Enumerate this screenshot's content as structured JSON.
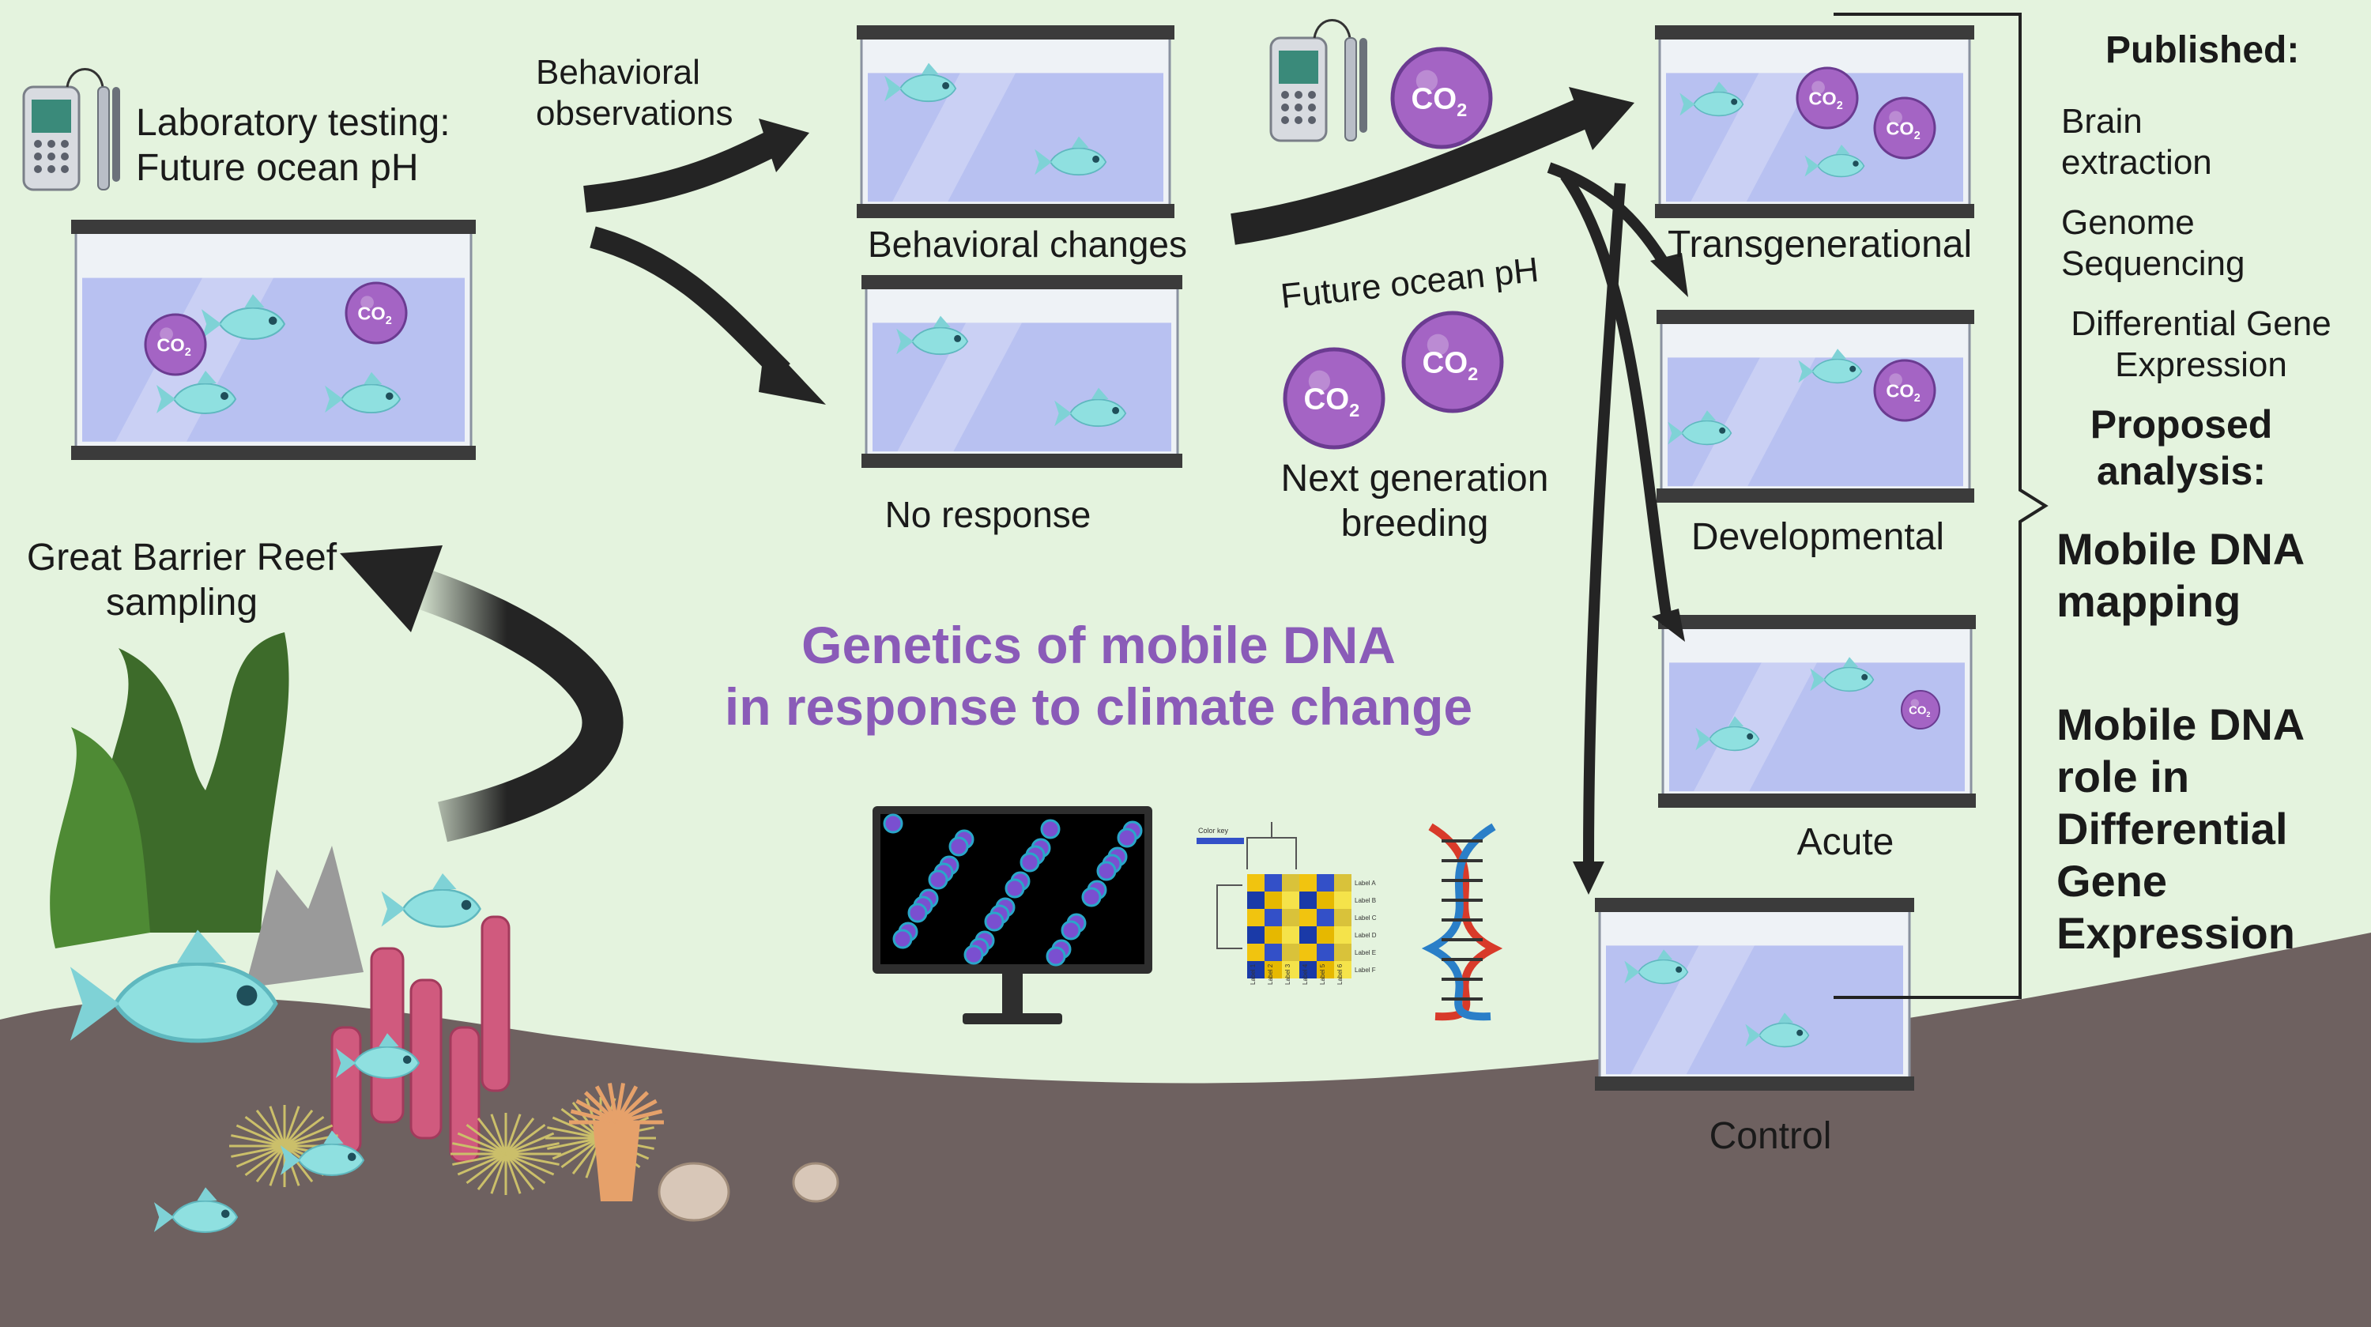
{
  "labels": {
    "lab_testing": "Laboratory testing:\nFuture ocean pH",
    "behavioral_obs": "Behavioral\nobservations",
    "behavioral_changes": "Behavioral changes",
    "no_response": "No response",
    "future_ocean_ph": "Future ocean pH",
    "next_gen": "Next generation\nbreeding",
    "transgenerational": "Transgenerational",
    "developmental": "Developmental",
    "acute": "Acute",
    "control": "Control",
    "gbr": "Great Barrier Reef\nsampling",
    "title": "Genetics of mobile DNA\nin response to climate change"
  },
  "published": {
    "heading": "Published:",
    "items": [
      "Brain\nextraction",
      "Genome\nSequencing",
      "Differential Gene\nExpression"
    ]
  },
  "proposed": {
    "heading": "Proposed\nanalysis:",
    "items": [
      "Mobile DNA\nmapping",
      "Mobile DNA\nrole in\nDifferential\nGene\nExpression"
    ]
  },
  "co2": {
    "text": "CO",
    "sub": "2"
  },
  "heatmap": {
    "color_key": "Color key",
    "row_labels": [
      "Label A",
      "Label B",
      "Label C",
      "Label D",
      "Label E",
      "Label F"
    ],
    "col_labels": [
      "Label 1",
      "Label 2",
      "Label 3",
      "Label 4",
      "Label 5",
      "Label 6"
    ]
  },
  "colors": {
    "background": "#e4f3de",
    "seafloor": "#6e6160",
    "arrow": "#242424",
    "title_purple": "#8a5bb8",
    "co2_bubble": "#a464c4",
    "tank_water": "#aeb9f0",
    "fish": "#8fe0e0"
  }
}
